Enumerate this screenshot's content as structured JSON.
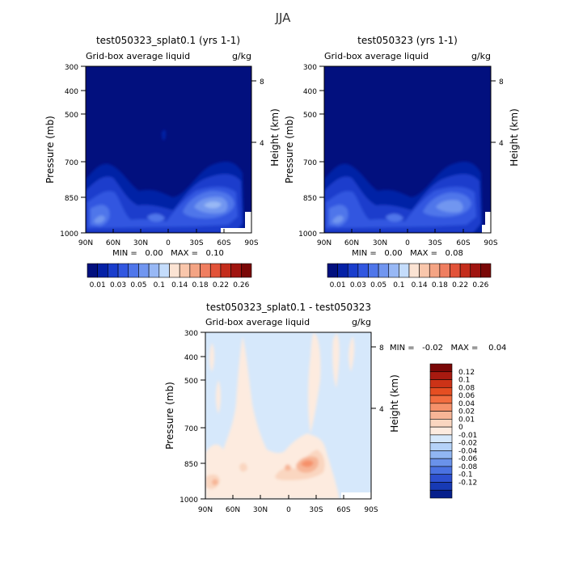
{
  "page": {
    "title": "JJA"
  },
  "colorbar": {
    "colors": [
      "#02107e",
      "#0521a6",
      "#1a3dcc",
      "#3257e0",
      "#4f76ea",
      "#7196f0",
      "#98b8f5",
      "#c4dcfb",
      "#fbe3d3",
      "#f9c6ab",
      "#f4a484",
      "#ef7e60",
      "#e25339",
      "#c42d1c",
      "#a01510",
      "#7a0807"
    ],
    "tick_labels": [
      "0.01",
      "0.03",
      "0.05",
      "0.1",
      "0.14",
      "0.18",
      "0.22",
      "0.26"
    ]
  },
  "diff_colorbar": {
    "colors": [
      "#7a0807",
      "#a81a10",
      "#cc3317",
      "#e54e22",
      "#f26d40",
      "#f5916a",
      "#f7b596",
      "#fad6c0",
      "#fdebdf",
      "#d6e8fb",
      "#b5d2f8",
      "#91b6f2",
      "#6a92ea",
      "#4a72e2",
      "#2d50d0",
      "#173ab4",
      "#061f8c"
    ],
    "tick_labels": [
      "0.12",
      "0.1",
      "0.08",
      "0.06",
      "0.04",
      "0.02",
      "0.01",
      "0",
      "-0.01",
      "-0.02",
      "-0.04",
      "-0.06",
      "-0.08",
      "-0.1",
      "-0.12"
    ]
  },
  "panels": [
    {
      "title": "test050323_splat0.1 (yrs 1-1)",
      "left_label": "Grid-box average liquid",
      "units": "g/kg",
      "ylabel": "Pressure (mb)",
      "right_label": "Height (km)",
      "stats": "MIN =   0.00   MAX =   0.10"
    },
    {
      "title": "test050323 (yrs 1-1)",
      "left_label": "Grid-box average liquid",
      "units": "g/kg",
      "ylabel": "Pressure (mb)",
      "right_label": "Height (km)",
      "stats": "MIN =   0.00   MAX =   0.08"
    },
    {
      "title": "test050323_splat0.1 - test050323",
      "left_label": "Grid-box average liquid",
      "units": "g/kg",
      "ylabel": "Pressure (mb)",
      "right_label": "Height (km)",
      "stats": "MIN =   -0.02   MAX =    0.04"
    }
  ],
  "chart_data": [
    {
      "type": "heatmap",
      "title": "test050323_splat0.1 (yrs 1-1)",
      "subtitle": "Grid-box average liquid",
      "units": "g/kg",
      "ylabel": "Pressure (mb)",
      "y2label": "Height (km)",
      "x_ticks": [
        "90N",
        "60N",
        "30N",
        "0",
        "30S",
        "60S",
        "90S"
      ],
      "x_range": [
        90,
        -90
      ],
      "y_ticks": [
        300,
        400,
        500,
        700,
        850,
        1000
      ],
      "y_range": [
        300,
        1000
      ],
      "y2_ticks": [
        4,
        8
      ],
      "min": 0.0,
      "max": 0.1,
      "levels": [
        0.01,
        0.02,
        0.03,
        0.04,
        0.05,
        0.07,
        0.1,
        0.12,
        0.14,
        0.16,
        0.18,
        0.2,
        0.22,
        0.24,
        0.26
      ],
      "features": [
        {
          "lat": 75,
          "p": 950,
          "value": 0.05
        },
        {
          "lat": 45,
          "p": 930,
          "value": 0.04
        },
        {
          "lat": 60,
          "p": 760,
          "value": 0.04
        },
        {
          "lat": 5,
          "p": 920,
          "value": 0.03
        },
        {
          "lat": -45,
          "p": 830,
          "value": 0.1
        },
        {
          "lat": -55,
          "p": 800,
          "value": 0.07
        },
        {
          "lat": 0,
          "p": 560,
          "value": 0.02
        }
      ]
    },
    {
      "type": "heatmap",
      "title": "test050323 (yrs 1-1)",
      "subtitle": "Grid-box average liquid",
      "units": "g/kg",
      "ylabel": "Pressure (mb)",
      "y2label": "Height (km)",
      "x_ticks": [
        "90N",
        "60N",
        "30N",
        "0",
        "30S",
        "60S",
        "90S"
      ],
      "x_range": [
        90,
        -90
      ],
      "y_ticks": [
        300,
        400,
        500,
        700,
        850,
        1000
      ],
      "y_range": [
        300,
        1000
      ],
      "y2_ticks": [
        4,
        8
      ],
      "min": 0.0,
      "max": 0.08,
      "levels": [
        0.01,
        0.02,
        0.03,
        0.04,
        0.05,
        0.07,
        0.1,
        0.12,
        0.14,
        0.16,
        0.18,
        0.2,
        0.22,
        0.24,
        0.26
      ],
      "features": [
        {
          "lat": 75,
          "p": 950,
          "value": 0.05
        },
        {
          "lat": 45,
          "p": 930,
          "value": 0.04
        },
        {
          "lat": 60,
          "p": 770,
          "value": 0.04
        },
        {
          "lat": 5,
          "p": 920,
          "value": 0.03
        },
        {
          "lat": -45,
          "p": 840,
          "value": 0.08
        },
        {
          "lat": -55,
          "p": 800,
          "value": 0.06
        }
      ]
    },
    {
      "type": "heatmap",
      "title": "test050323_splat0.1 - test050323",
      "subtitle": "Grid-box average liquid",
      "units": "g/kg",
      "ylabel": "Pressure (mb)",
      "y2label": "Height (km)",
      "x_ticks": [
        "90N",
        "60N",
        "30N",
        "0",
        "30S",
        "60S",
        "90S"
      ],
      "x_range": [
        90,
        -90
      ],
      "y_ticks": [
        300,
        400,
        500,
        700,
        850,
        1000
      ],
      "y_range": [
        300,
        1000
      ],
      "y2_ticks": [
        4,
        8
      ],
      "min": -0.02,
      "max": 0.04,
      "levels": [
        -0.12,
        -0.1,
        -0.08,
        -0.06,
        -0.04,
        -0.02,
        -0.01,
        0,
        0.01,
        0.02,
        0.04,
        0.06,
        0.08,
        0.1,
        0.12
      ],
      "features": [
        {
          "lat": -20,
          "p": 860,
          "value": 0.04
        },
        {
          "lat": 0,
          "p": 860,
          "value": 0.02
        },
        {
          "lat": 85,
          "p": 950,
          "value": 0.02
        },
        {
          "lat": 30,
          "p": 800,
          "value": 0.01
        },
        {
          "lat": 60,
          "p": 880,
          "value": -0.01
        }
      ]
    }
  ]
}
